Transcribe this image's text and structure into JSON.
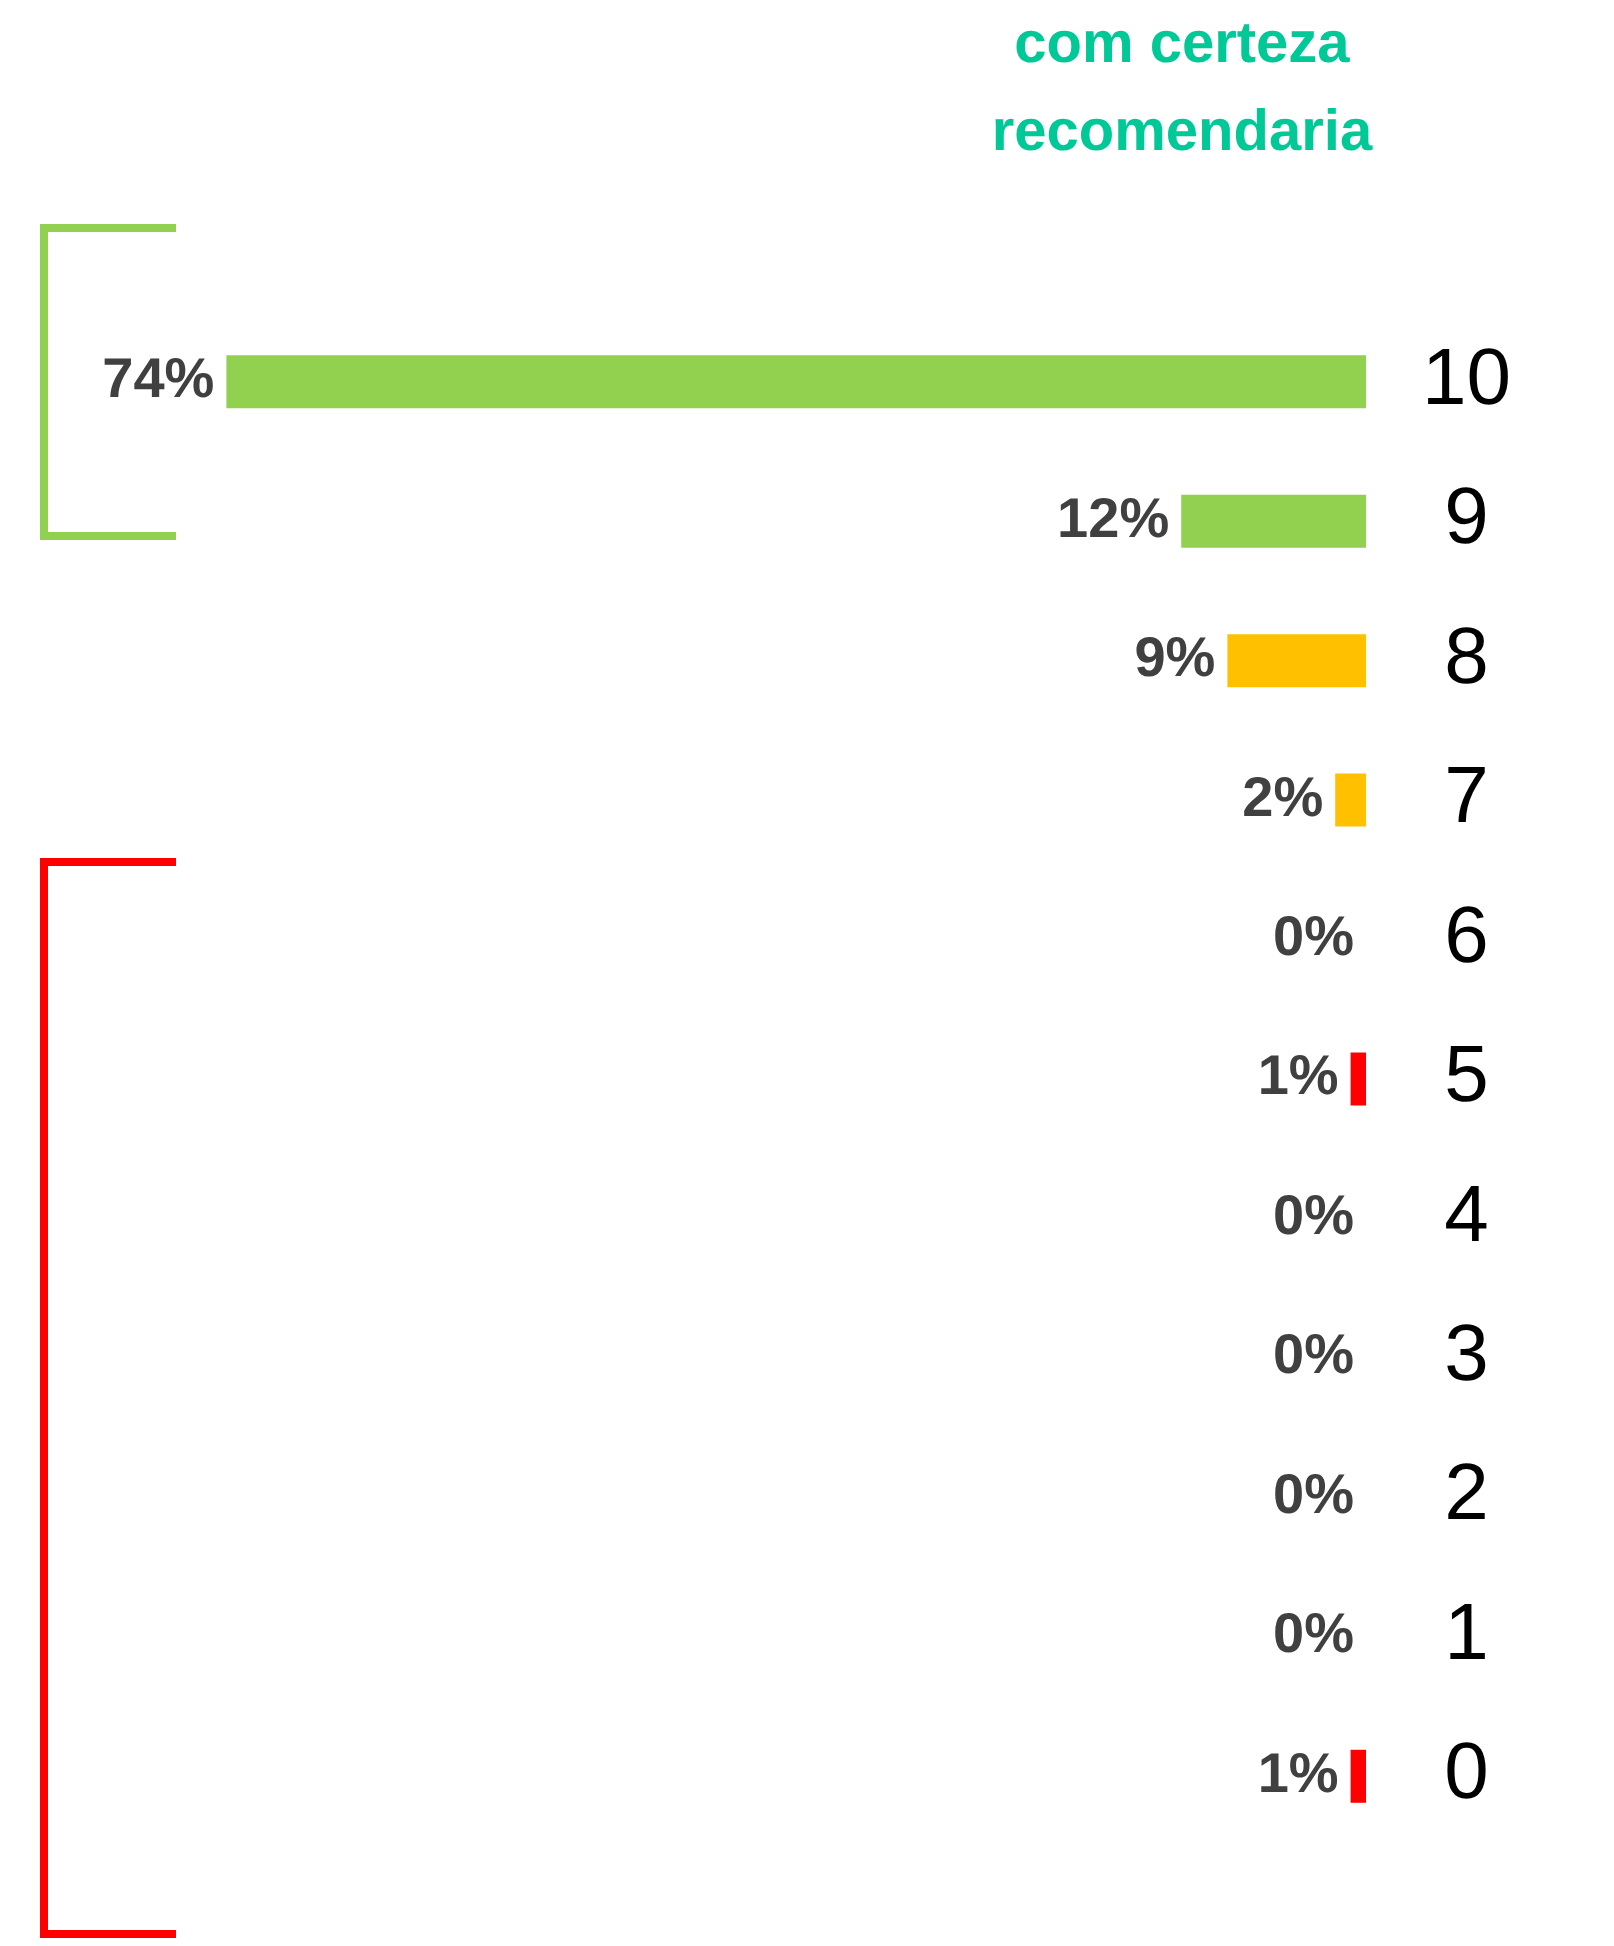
{
  "chart_data": {
    "type": "bar",
    "orientation": "horizontal",
    "title": "com certeza recomendaria",
    "categories": [
      "10",
      "9",
      "8",
      "7",
      "6",
      "5",
      "4",
      "3",
      "2",
      "1",
      "0"
    ],
    "values": [
      74,
      12,
      9,
      2,
      0,
      1,
      0,
      0,
      0,
      0,
      1
    ],
    "value_labels": [
      "74%",
      "12%",
      "9%",
      "2%",
      "0%",
      "1%",
      "0%",
      "0%",
      "0%",
      "0%",
      "1%"
    ],
    "colors": [
      "#92d050",
      "#92d050",
      "#ffc000",
      "#ffc000",
      "#ff0000",
      "#ff0000",
      "#ff0000",
      "#ff0000",
      "#ff0000",
      "#ff0000",
      "#ff0000"
    ],
    "tick_labels": "y",
    "grid": false,
    "legend": false
  }
}
